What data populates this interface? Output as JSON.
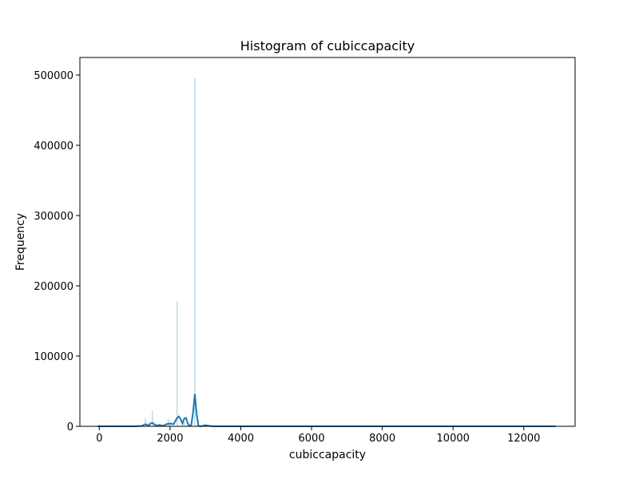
{
  "chart_data": {
    "type": "bar",
    "title": "Histogram of cubiccapacity",
    "xlabel": "cubiccapacity",
    "ylabel": "Frequency",
    "xlim": [
      -550,
      13450
    ],
    "ylim": [
      0,
      525000
    ],
    "x_ticks": [
      0,
      2000,
      4000,
      6000,
      8000,
      10000,
      12000
    ],
    "y_ticks": [
      0,
      100000,
      200000,
      300000,
      400000,
      500000
    ],
    "bar_color": "#1f77b4",
    "kde_color": "#1f77b4",
    "grid": false,
    "bars": [
      {
        "x": 0,
        "value": 3000
      },
      {
        "x": 1300,
        "value": 12000
      },
      {
        "x": 1400,
        "value": 5000
      },
      {
        "x": 1500,
        "value": 22000
      },
      {
        "x": 1600,
        "value": 4000
      },
      {
        "x": 1800,
        "value": 3000
      },
      {
        "x": 1950,
        "value": 11000
      },
      {
        "x": 2000,
        "value": 7000
      },
      {
        "x": 2200,
        "value": 178000
      },
      {
        "x": 2400,
        "value": 6000
      },
      {
        "x": 2500,
        "value": 3000
      },
      {
        "x": 2700,
        "value": 496000
      },
      {
        "x": 2800,
        "value": 9000
      },
      {
        "x": 3000,
        "value": 3000
      }
    ],
    "kde": {
      "x": [
        -50,
        500,
        1000,
        1200,
        1300,
        1400,
        1450,
        1500,
        1600,
        1700,
        1800,
        1900,
        2000,
        2100,
        2200,
        2250,
        2300,
        2350,
        2400,
        2450,
        2500,
        2550,
        2600,
        2650,
        2700,
        2750,
        2800,
        2850,
        2900,
        3000,
        3200,
        3500,
        4000,
        6000,
        8000,
        10000,
        12000,
        12900
      ],
      "y": [
        0,
        0,
        0,
        500,
        3000,
        1000,
        4000,
        5000,
        1000,
        2000,
        500,
        3000,
        4000,
        3000,
        12000,
        14000,
        10000,
        4000,
        11000,
        12000,
        4000,
        500,
        2000,
        20000,
        46000,
        18000,
        1000,
        0,
        500,
        1500,
        0,
        0,
        0,
        0,
        0,
        0,
        0,
        0
      ]
    }
  }
}
